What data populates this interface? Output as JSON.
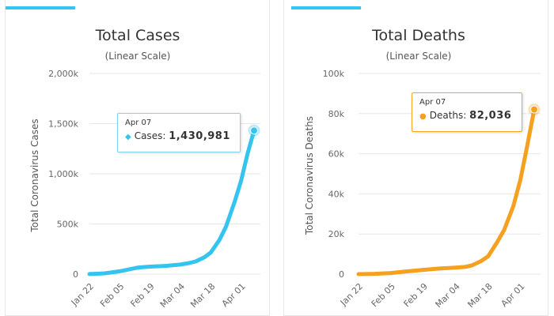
{
  "chart_data": [
    {
      "type": "line",
      "title": "Total Cases",
      "subtitle": "(Linear Scale)",
      "ylabel": "Total Coronavirus Cases",
      "xlabel": "",
      "color": "#33c4ef",
      "grid": true,
      "ylim": [
        0,
        2000000
      ],
      "yticks": [
        "0",
        "500k",
        "1,000k",
        "1,500k",
        "2,000k"
      ],
      "xticks": [
        "Jan 22",
        "Feb 05",
        "Feb 19",
        "Mar 04",
        "Mar 18",
        "Apr 01"
      ],
      "series": [
        {
          "name": "Cases",
          "x": [
            "Jan 22",
            "Jan 29",
            "Feb 05",
            "Feb 12",
            "Feb 14",
            "Feb 19",
            "Feb 26",
            "Mar 04",
            "Mar 08",
            "Mar 11",
            "Mar 15",
            "Mar 18",
            "Mar 22",
            "Mar 25",
            "Mar 29",
            "Apr 01",
            "Apr 04",
            "Apr 07"
          ],
          "values": [
            555,
            7800,
            28000,
            60000,
            67000,
            75000,
            82000,
            95000,
            110000,
            126000,
            168000,
            215000,
            340000,
            470000,
            720000,
            930000,
            1200000,
            1430981
          ]
        }
      ],
      "tooltip": {
        "date": "Apr 07",
        "label": "Cases:",
        "value": "1,430,981"
      }
    },
    {
      "type": "line",
      "title": "Total Deaths",
      "subtitle": "(Linear Scale)",
      "ylabel": "Total Coronavirus Deaths",
      "xlabel": "",
      "color": "#f5a01f",
      "grid": true,
      "ylim": [
        0,
        100000
      ],
      "yticks": [
        "0",
        "20k",
        "40k",
        "60k",
        "80k",
        "100k"
      ],
      "xticks": [
        "Jan 22",
        "Feb 05",
        "Feb 19",
        "Mar 04",
        "Mar 18",
        "Apr 01"
      ],
      "series": [
        {
          "name": "Deaths",
          "x": [
            "Jan 22",
            "Jan 29",
            "Feb 05",
            "Feb 12",
            "Feb 19",
            "Feb 26",
            "Mar 04",
            "Mar 08",
            "Mar 11",
            "Mar 15",
            "Mar 18",
            "Mar 22",
            "Mar 25",
            "Mar 29",
            "Apr 01",
            "Apr 04",
            "Apr 07"
          ],
          "values": [
            17,
            170,
            560,
            1370,
            2120,
            2800,
            3250,
            3600,
            4350,
            6500,
            8800,
            16000,
            22000,
            34000,
            47000,
            64000,
            82036
          ]
        }
      ],
      "tooltip": {
        "date": "Apr 07",
        "label": "Deaths:",
        "value": "82,036"
      }
    }
  ]
}
